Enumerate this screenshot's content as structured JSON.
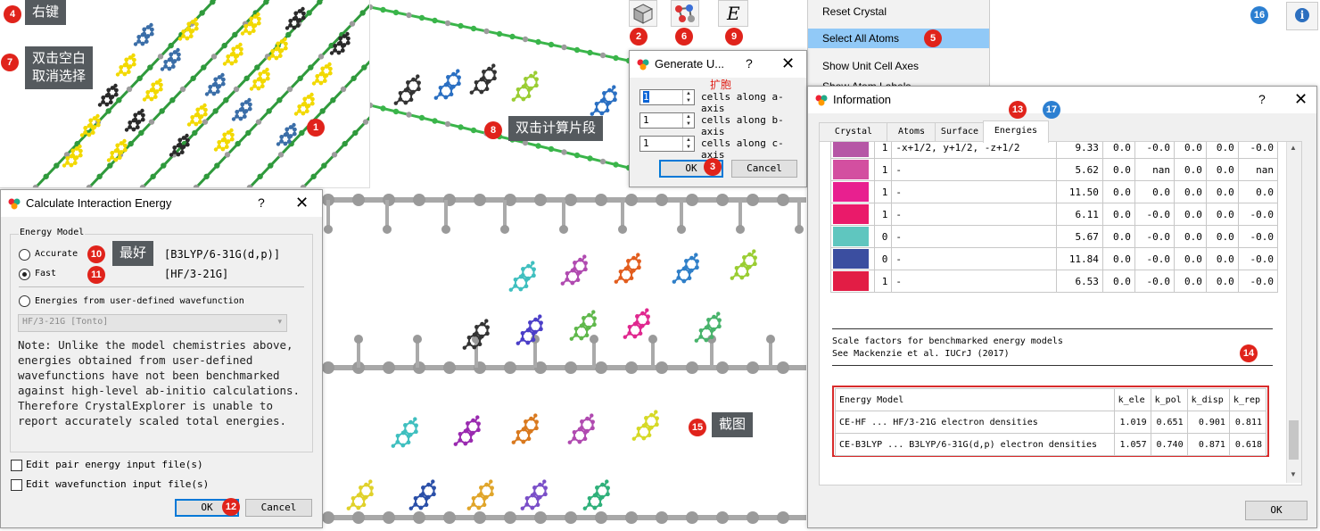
{
  "callouts": {
    "right_click": "右键",
    "double_click_blank": [
      "双击空白",
      "取消选择"
    ],
    "expand_cell": "扩胞",
    "double_click_fragment": "双击计算片段",
    "best": "最好",
    "screenshot": "截图"
  },
  "badges": {
    "b1": "1",
    "b2": "2",
    "b3": "3",
    "b4": "4",
    "b5": "5",
    "b6": "6",
    "b7": "7",
    "b8": "8",
    "b9": "9",
    "b10": "10",
    "b11": "11",
    "b12": "12",
    "b13": "13",
    "b14": "14",
    "b15": "15",
    "b16": "16",
    "b17": "17"
  },
  "toolbar": {
    "energy_glyph": "E",
    "info_glyph": "i"
  },
  "context_menu": {
    "items": [
      "Reset Crystal",
      "Select All Atoms",
      "Show Unit Cell Axes",
      "Show Atom Labels"
    ],
    "selected_index": 1
  },
  "generate_dialog": {
    "title": "Generate U...",
    "help": "?",
    "close": "✕",
    "rows": [
      {
        "value": "1",
        "label": "cells along a-axis"
      },
      {
        "value": "1",
        "label": "cells along b-axis"
      },
      {
        "value": "1",
        "label": "cells along c-axis"
      }
    ],
    "ok": "OK",
    "cancel": "Cancel"
  },
  "energy_dialog": {
    "title": "Calculate Interaction Energy",
    "help": "?",
    "close": "✕",
    "group_label": "Energy Model",
    "option_accurate": "Accurate",
    "option_accurate_model": "[B3LYP/6-31G(d,p)]",
    "option_fast": "Fast",
    "option_fast_model": "[HF/3-21G]",
    "selected": "Fast",
    "option_wavefunction": "Energies from user-defined wavefunction",
    "wavefunction_select": "HF/3-21G [Tonto]",
    "note": "Note: Unlike the model chemistries above, energies obtained from user-defined wavefunctions have not been benchmarked against high-level ab-initio calculations. Therefore CrystalExplorer is unable to report accurately scaled total energies.",
    "check_pair": "Edit pair energy input file(s)",
    "check_wave": "Edit wavefunction input file(s)",
    "ok": "OK",
    "cancel": "Cancel"
  },
  "info_dialog": {
    "title": "Information",
    "help": "?",
    "close": "✕",
    "tabs": [
      "Crystal",
      "Atoms",
      "Surface",
      "Energies"
    ],
    "active_tab": "Energies",
    "rows": [
      {
        "color": "#b657a6",
        "n": "1",
        "symop": "-x+1/2, y+1/2, -z+1/2",
        "r": "9.33",
        "e1": "0.0",
        "e2": "-0.0",
        "e3": "0.0",
        "e4": "0.0",
        "e5": "-0.0"
      },
      {
        "color": "#d34fa0",
        "n": "1",
        "symop": "-",
        "r": "5.62",
        "e1": "0.0",
        "e2": "nan",
        "e3": "0.0",
        "e4": "0.0",
        "e5": "nan"
      },
      {
        "color": "#e8208f",
        "n": "1",
        "symop": "-",
        "r": "11.50",
        "e1": "0.0",
        "e2": "0.0",
        "e3": "0.0",
        "e4": "0.0",
        "e5": "0.0"
      },
      {
        "color": "#ea1a6a",
        "n": "1",
        "symop": "-",
        "r": "6.11",
        "e1": "0.0",
        "e2": "-0.0",
        "e3": "0.0",
        "e4": "0.0",
        "e5": "-0.0"
      },
      {
        "color": "#5fc6bf",
        "n": "0",
        "symop": "-",
        "r": "5.67",
        "e1": "0.0",
        "e2": "-0.0",
        "e3": "0.0",
        "e4": "0.0",
        "e5": "-0.0"
      },
      {
        "color": "#3b4ea0",
        "n": "0",
        "symop": "-",
        "r": "11.84",
        "e1": "0.0",
        "e2": "-0.0",
        "e3": "0.0",
        "e4": "0.0",
        "e5": "-0.0"
      },
      {
        "color": "#e21d45",
        "n": "1",
        "symop": "-",
        "r": "6.53",
        "e1": "0.0",
        "e2": "-0.0",
        "e3": "0.0",
        "e4": "0.0",
        "e5": "-0.0"
      }
    ],
    "scale_note_1": "Scale factors for benchmarked energy models",
    "scale_note_2": "See Mackenzie et al. IUCrJ (2017)",
    "scale_headers": [
      "Energy Model",
      "k_ele",
      "k_pol",
      "k_disp",
      "k_rep"
    ],
    "scale_rows": [
      {
        "model": "CE-HF ... HF/3-21G electron densities",
        "k_ele": "1.019",
        "k_pol": "0.651",
        "k_disp": "0.901",
        "k_rep": "0.811"
      },
      {
        "model": "CE-B3LYP ... B3LYP/6-31G(d,p) electron densities",
        "k_ele": "1.057",
        "k_pol": "0.740",
        "k_disp": "0.871",
        "k_rep": "0.618"
      }
    ],
    "ok": "OK"
  }
}
